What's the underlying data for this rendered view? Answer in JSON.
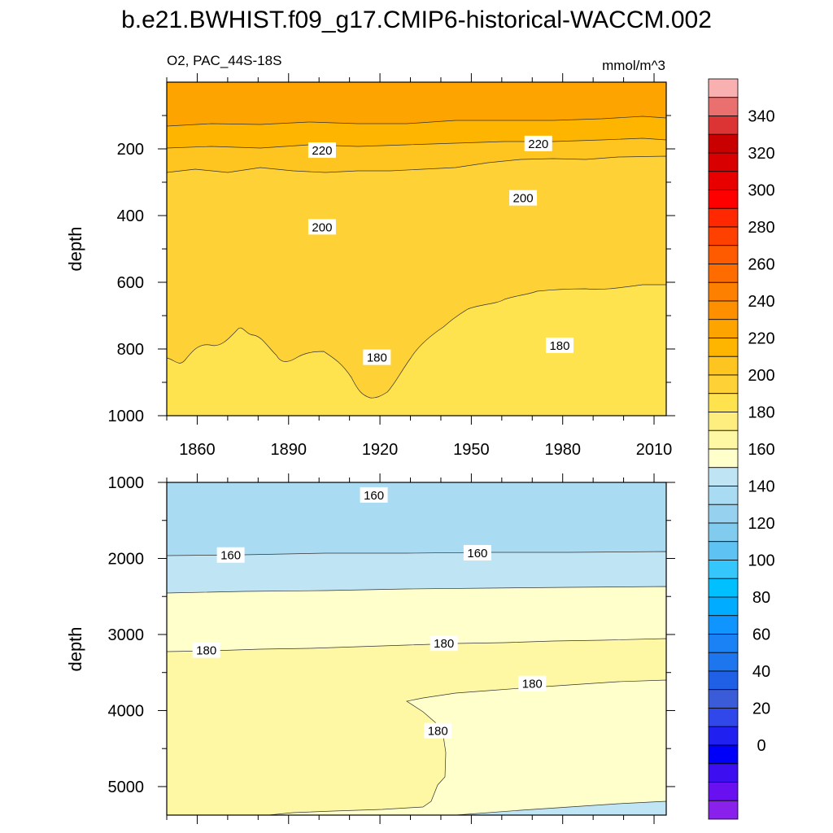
{
  "chart_data": {
    "type": "contour",
    "title": "b.e21.BWHIST.f09_g17.CMIP6-historical-WACCM.002",
    "subtitle_left": "O2, PAC_44S-18S",
    "units": "mmol/m^3",
    "panels": [
      {
        "name": "upper",
        "ylabel": "depth",
        "xlim": [
          1850,
          2014
        ],
        "ylim": [
          0,
          1000
        ],
        "y_inverted": true,
        "x_ticks": [
          "1860",
          "1890",
          "1920",
          "1950",
          "1980",
          "2010"
        ],
        "y_ticks": [
          "200",
          "400",
          "600",
          "800",
          "1000"
        ],
        "contour_labels": [
          {
            "text": "220",
            "x": 1901,
            "y": 205
          },
          {
            "text": "220",
            "x": 1972,
            "y": 185
          },
          {
            "text": "200",
            "x": 1967,
            "y": 348
          },
          {
            "text": "200",
            "x": 1901,
            "y": 435
          },
          {
            "text": "180",
            "x": 1979,
            "y": 790
          },
          {
            "text": "180",
            "x": 1919,
            "y": 826
          }
        ]
      },
      {
        "name": "lower",
        "ylabel": "depth",
        "xlim": [
          1850,
          2014
        ],
        "ylim": [
          1000,
          5375
        ],
        "y_inverted": true,
        "x_ticks": [],
        "y_ticks": [
          "1000",
          "2000",
          "3000",
          "4000",
          "5000"
        ],
        "contour_labels": [
          {
            "text": "160",
            "x": 1918,
            "y": 1170
          },
          {
            "text": "160",
            "x": 1871,
            "y": 1960
          },
          {
            "text": "160",
            "x": 1952,
            "y": 1930
          },
          {
            "text": "180",
            "x": 1863,
            "y": 3210
          },
          {
            "text": "180",
            "x": 1941,
            "y": 3120
          },
          {
            "text": "180",
            "x": 1970,
            "y": 3650
          },
          {
            "text": "180",
            "x": 1939,
            "y": 4270
          }
        ]
      }
    ],
    "colorbar": {
      "labels": [
        "340",
        "320",
        "300",
        "280",
        "260",
        "240",
        "220",
        "200",
        "180",
        "160",
        "140",
        "120",
        "100",
        "80",
        "60",
        "40",
        "20",
        "0"
      ],
      "colors_top_to_bottom": [
        "#f8b0b0",
        "#ea7070",
        "#dc3434",
        "#c80000",
        "#d80000",
        "#e80000",
        "#ff0000",
        "#ff2800",
        "#fe4000",
        "#fe5a00",
        "#fe6c00",
        "#fe8000",
        "#fe9000",
        "#fea400",
        "#fdb500",
        "#fec420",
        "#fed236",
        "#fee24e",
        "#feee80",
        "#fef8a4",
        "#ffffcc",
        "#bfe5f5",
        "#a9dbf2",
        "#96d2ef",
        "#81cbee",
        "#5ec3f2",
        "#35c6fb",
        "#00c0ff",
        "#00acff",
        "#1095ff",
        "#1a82f4",
        "#1e76ee",
        "#2060e6",
        "#3b5cd8",
        "#3048ea",
        "#2020f0",
        "#0000f8",
        "#3c0ef0",
        "#6810ef",
        "#8a20ec"
      ]
    }
  }
}
